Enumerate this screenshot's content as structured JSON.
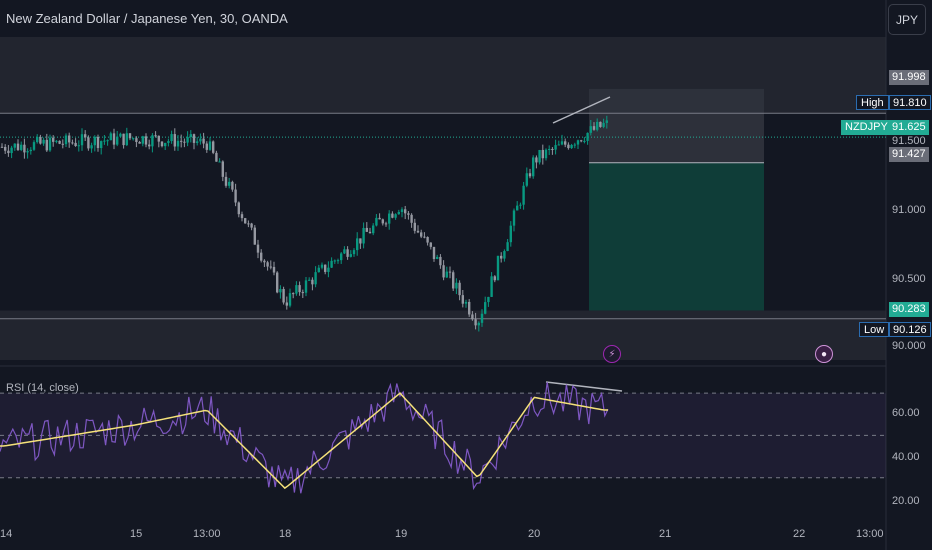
{
  "header": {
    "title": "New Zealand Dollar / Japanese Yen, 30, OANDA",
    "currency_button": "JPY"
  },
  "rsi": {
    "label": "RSI (14, close)"
  },
  "price_axis": {
    "ticks": [
      "91.500",
      "91.000",
      "90.500",
      "90.000"
    ],
    "labels": {
      "box_top": "91.998",
      "high_tag": "High",
      "high_value": "91.810",
      "symbol_tag": "NZDJPY",
      "last_value": "91.625",
      "entry": "91.427",
      "target": "90.283",
      "low_tag": "Low",
      "low_value": "90.126"
    }
  },
  "rsi_axis": {
    "ticks": [
      "60.00",
      "40.00",
      "20.00"
    ]
  },
  "time_axis": {
    "ticks": [
      "14",
      "15",
      "13:00",
      "18",
      "19",
      "20",
      "21",
      "22",
      "13:00"
    ]
  },
  "icons": {
    "lightning": "lightning-icon",
    "dividend": "dividend-icon"
  },
  "colors": {
    "up": "#22ab94",
    "up_candle": "#089981",
    "down_candle": "#9598a1",
    "target_zone": "#0f3d38",
    "stop_zone": "#2e313c",
    "rsi_line": "#7e57c2",
    "rsi_ma": "#f5e27a"
  },
  "chart_data": {
    "type": "candlestick",
    "symbol": "NZDJPY",
    "interval": "30",
    "yrange": [
      89.9,
      92.4
    ],
    "price_path": [
      {
        "x": "14",
        "price": 91.55
      },
      {
        "x": "15",
        "price": 91.62
      },
      {
        "x": "13:00",
        "price": 91.58
      },
      {
        "x": "18",
        "price": 90.35
      },
      {
        "x": "19",
        "price": 91.1
      },
      {
        "x": "19.5",
        "price": 90.2
      },
      {
        "x": "20",
        "price": 91.45
      },
      {
        "x": "20.5",
        "price": 91.72
      }
    ],
    "levels": {
      "high": 91.81,
      "last": 91.625,
      "low": 90.126,
      "position_top": 91.998,
      "position_entry": 91.427,
      "position_target": 90.283
    },
    "rsi": {
      "range": [
        10,
        80
      ],
      "bands": [
        70,
        50,
        30
      ],
      "path": [
        {
          "x": "14",
          "value": 45
        },
        {
          "x": "15",
          "value": 55
        },
        {
          "x": "13:00",
          "value": 62
        },
        {
          "x": "18",
          "value": 25
        },
        {
          "x": "19",
          "value": 70
        },
        {
          "x": "19.5",
          "value": 30
        },
        {
          "x": "20",
          "value": 68
        },
        {
          "x": "20.5",
          "value": 62
        }
      ]
    }
  }
}
